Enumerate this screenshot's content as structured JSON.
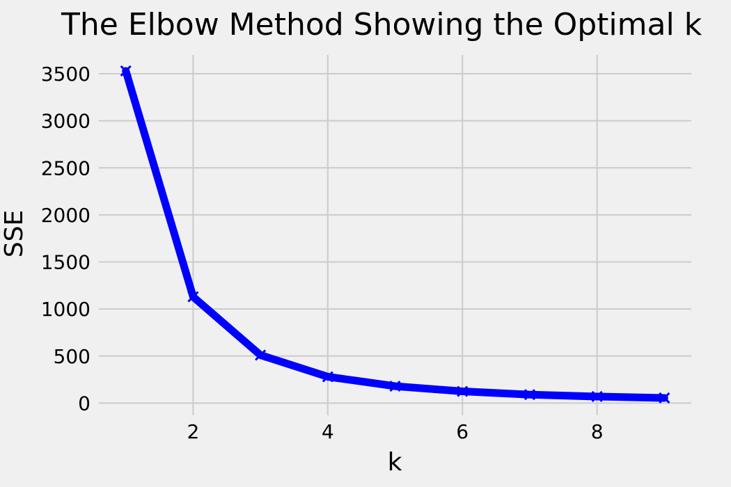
{
  "chart_data": {
    "type": "line",
    "title": "The Elbow Method Showing the Optimal k",
    "xlabel": "k",
    "ylabel": "SSE",
    "xlim": [
      0.6,
      9.4
    ],
    "ylim": [
      -130,
      3700
    ],
    "x_ticks": [
      2,
      4,
      6,
      8
    ],
    "y_ticks": [
      0,
      500,
      1000,
      1500,
      2000,
      2500,
      3000,
      3500
    ],
    "grid": true,
    "marker": "x",
    "color": "#0000ff",
    "series": [
      {
        "x": [
          1,
          2,
          3,
          4,
          5,
          6,
          7,
          8,
          9
        ],
        "values": [
          3530,
          1130,
          510,
          280,
          180,
          125,
          90,
          70,
          55
        ]
      }
    ]
  }
}
